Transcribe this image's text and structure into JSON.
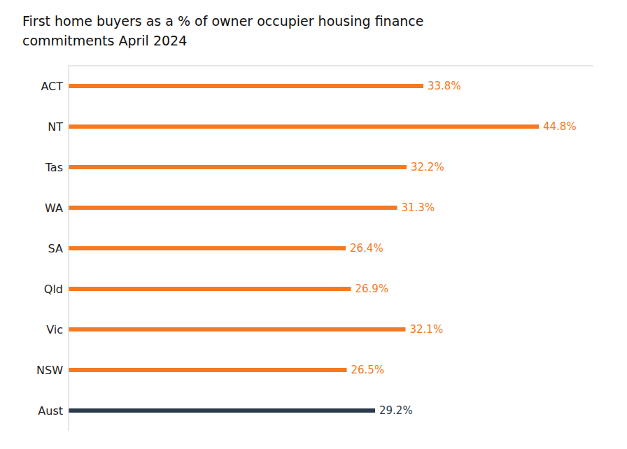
{
  "chart_data": {
    "type": "bar",
    "orientation": "horizontal",
    "title": "First home buyers as a % of owner occupier housing finance\ncommitments April 2024",
    "categories": [
      "Aust",
      "NSW",
      "Vic",
      "Qld",
      "SA",
      "WA",
      "Tas",
      "NT",
      "ACT"
    ],
    "values": [
      29.2,
      26.5,
      32.1,
      26.9,
      26.4,
      31.3,
      32.2,
      44.8,
      33.8
    ],
    "value_labels": [
      "29.2%",
      "26.5%",
      "32.1%",
      "26.9%",
      "26.4%",
      "31.3%",
      "32.2%",
      "44.8%",
      "33.8%"
    ],
    "data_labels": true,
    "colors": [
      "#2b3a4a",
      "#f47920",
      "#f47920",
      "#f47920",
      "#f47920",
      "#f47920",
      "#f47920",
      "#f47920",
      "#f47920"
    ],
    "xlim": [
      0,
      50
    ],
    "tick_labels": "y",
    "grid": false
  }
}
